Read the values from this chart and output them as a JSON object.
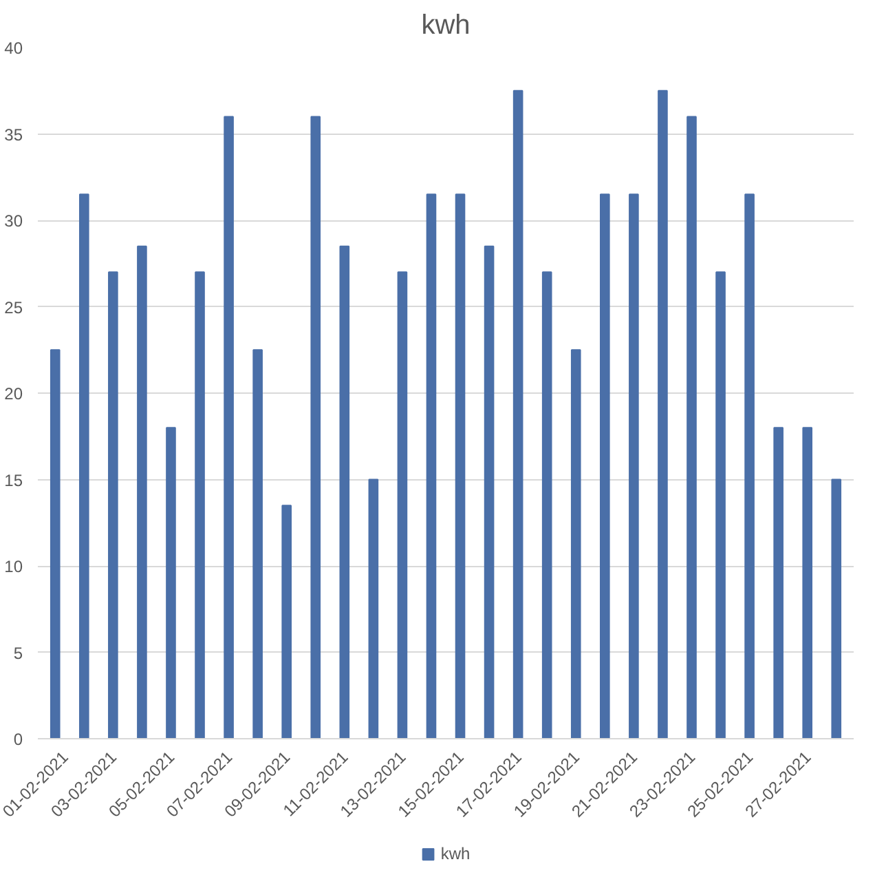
{
  "chart_data": {
    "type": "bar",
    "title": "kwh",
    "categories": [
      "01-02-2021",
      null,
      "03-02-2021",
      null,
      "05-02-2021",
      null,
      "07-02-2021",
      null,
      "09-02-2021",
      null,
      "11-02-2021",
      null,
      "13-02-2021",
      null,
      "15-02-2021",
      null,
      "17-02-2021",
      null,
      "19-02-2021",
      null,
      "21-02-2021",
      null,
      "23-02-2021",
      null,
      "25-02-2021",
      null,
      "27-02-2021",
      null
    ],
    "series": [
      {
        "name": "kwh",
        "color": "#4a6fa8",
        "values": [
          22.5,
          31.5,
          27,
          28.5,
          18,
          27,
          36,
          22.5,
          13.5,
          36,
          28.5,
          15,
          27,
          31.5,
          31.5,
          28.5,
          37.5,
          27,
          22.5,
          31.5,
          31.5,
          37.5,
          36,
          27,
          31.5,
          18,
          18,
          15
        ]
      }
    ],
    "ylim": [
      0,
      40
    ],
    "yticks": [
      0,
      5,
      10,
      15,
      20,
      25,
      30,
      35,
      40
    ],
    "grid": "y",
    "legend": "bottom"
  }
}
